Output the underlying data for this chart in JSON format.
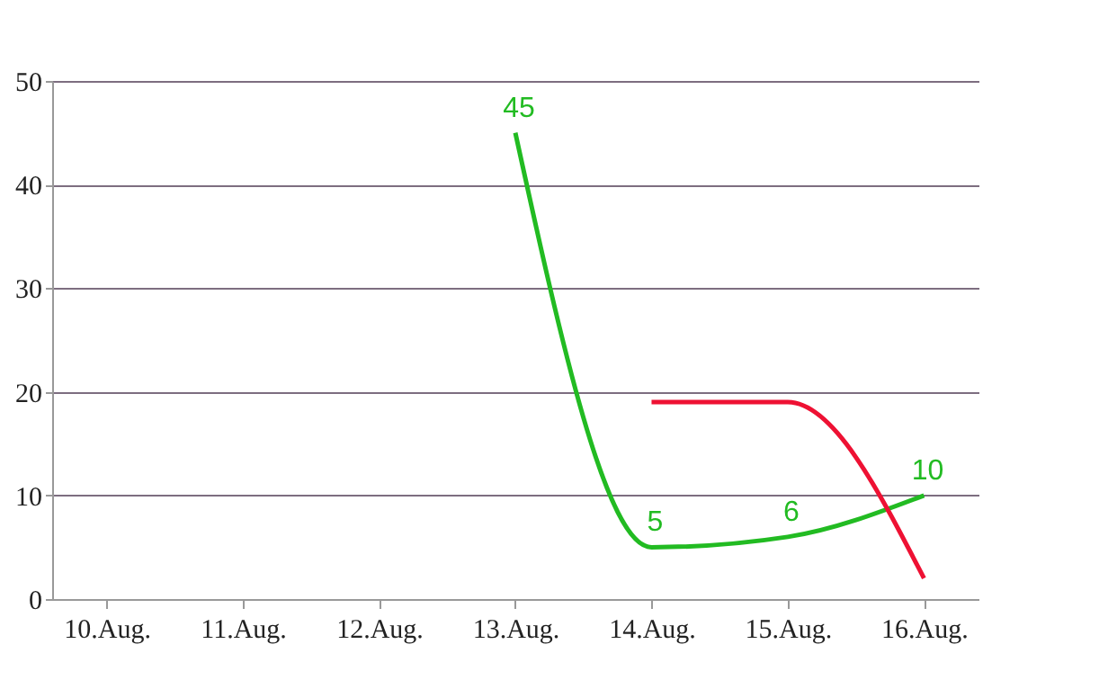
{
  "chart_data": {
    "type": "line",
    "categories": [
      "10.Aug.",
      "11.Aug.",
      "12.Aug.",
      "13.Aug.",
      "14.Aug.",
      "15.Aug.",
      "16.Aug."
    ],
    "series": [
      {
        "color": "#22bb22",
        "values": [
          null,
          null,
          null,
          45,
          5,
          6,
          10
        ],
        "value_labels": [
          null,
          null,
          null,
          "45",
          "5",
          "6",
          "10"
        ]
      },
      {
        "color": "#ee1133",
        "values": [
          null,
          null,
          null,
          null,
          19,
          19,
          2
        ]
      }
    ],
    "ylim": [
      0,
      50
    ],
    "yticks": [
      0,
      10,
      20,
      30,
      40,
      50
    ],
    "grid": "y",
    "legend": false,
    "marker": "none",
    "line_style": "solid"
  }
}
